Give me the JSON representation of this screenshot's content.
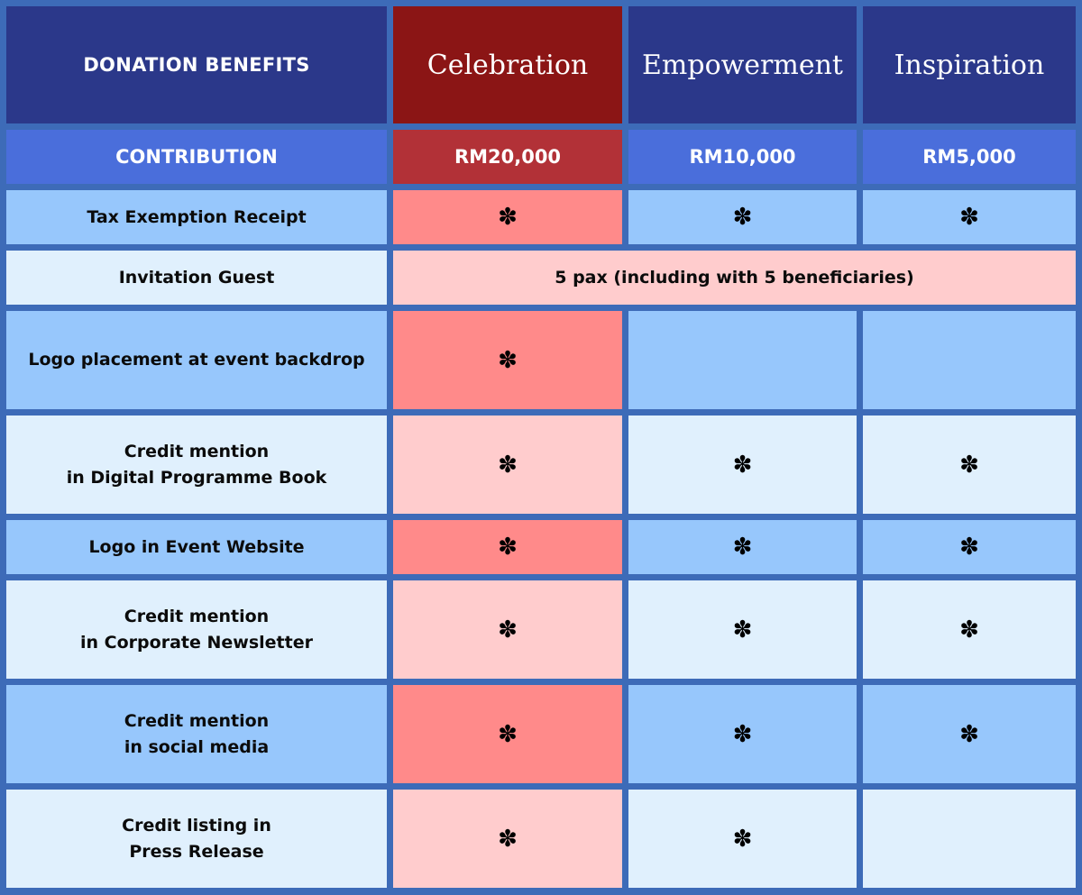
{
  "header": {
    "title": "DONATION BENEFITS",
    "tiers": [
      "Celebration",
      "Empowerment",
      "Inspiration"
    ]
  },
  "contribution": {
    "label": "CONTRIBUTION",
    "amounts": [
      "RM20,000",
      "RM10,000",
      "RM5,000"
    ]
  },
  "mark_symbol": "✽",
  "icon": "flower-asterisk-icon",
  "colors": {
    "border": "#3d6bb8",
    "header_navy": "#2b388a",
    "header_celebration": "#8b1515",
    "contribution_blue": "#4a6edb",
    "contribution_celebration": "#b23137",
    "row_blue": "#97c7fc",
    "row_light": "#e0f0fd",
    "celebration_dark_row": "#ff8a8a",
    "celebration_light_row": "#ffcccd"
  },
  "rows": [
    {
      "label": "Tax Exemption Receipt",
      "marks": [
        true,
        true,
        true
      ]
    },
    {
      "label": "Invitation Guest",
      "span_text": "5 pax (including with 5 beneficiaries)"
    },
    {
      "label": "Logo placement at event backdrop",
      "marks": [
        true,
        false,
        false
      ]
    },
    {
      "label": "Credit mention\nin Digital Programme Book",
      "marks": [
        true,
        true,
        true
      ]
    },
    {
      "label": "Logo in Event Website",
      "marks": [
        true,
        true,
        true
      ]
    },
    {
      "label": "Credit mention\nin Corporate Newsletter",
      "marks": [
        true,
        true,
        true
      ]
    },
    {
      "label": "Credit mention\nin social media",
      "marks": [
        true,
        true,
        true
      ]
    },
    {
      "label": "Credit listing in\nPress Release",
      "marks": [
        true,
        true,
        false
      ]
    }
  ]
}
